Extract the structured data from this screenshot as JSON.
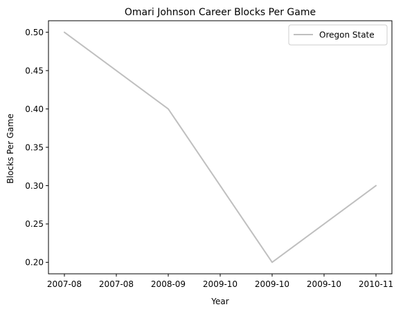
{
  "chart_data": {
    "type": "line",
    "title": "Omari Johnson Career Blocks Per Game",
    "xlabel": "Year",
    "ylabel": "Blocks Per Game",
    "x_categories": [
      "2007-08",
      "2008-09",
      "2009-10",
      "2010-11"
    ],
    "x_tick_labels": [
      "2007-08",
      "2007-08",
      "2008-09",
      "2009-10",
      "2009-10",
      "2009-10",
      "2010-11"
    ],
    "y_ticks": [
      0.2,
      0.25,
      0.3,
      0.35,
      0.4,
      0.45,
      0.5
    ],
    "ylim": [
      0.185,
      0.515
    ],
    "grid": false,
    "legend_position": "top-right",
    "series": [
      {
        "name": "Oregon State",
        "color": "#bfbfbf",
        "values": [
          0.5,
          0.4,
          0.2,
          0.3
        ]
      }
    ]
  }
}
